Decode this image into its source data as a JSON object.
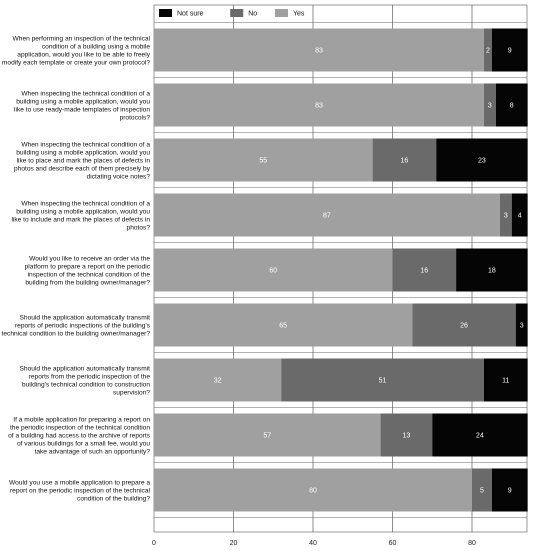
{
  "chart_data": {
    "type": "bar",
    "orientation": "horizontal",
    "stacked": true,
    "grid": true,
    "legend_position": "top-left",
    "xlim": [
      0,
      93
    ],
    "xticks": [
      0,
      20,
      40,
      60,
      80
    ],
    "categories": [
      [
        "When performing an inspection of the technical",
        "condition of a building using a mobile",
        "application, would you like to be able to freely",
        "modify each template or create your own protocol?"
      ],
      [
        "When inspecting the technical condition of a",
        "building using a mobile application, would you",
        "like to use ready-made templates of inspection",
        "protocols?"
      ],
      [
        "When inspecting the technical condition of a",
        "building using a mobile application, would you",
        "like to place and mark the places of defects in",
        "photos and describe each of them precisely by",
        "dictating voice notes?"
      ],
      [
        "When inspecting the technical condition of a",
        "building using a mobile application, would you",
        "like to include and mark the places of defects in",
        "photos?"
      ],
      [
        "Would you like to receive an order via the",
        "platform to prepare a report on the periodic",
        "inspection of the technical condition of the",
        "building from the building owner/manager?"
      ],
      [
        "Should the application automatically transmit",
        "reports of periodic inspections of the building's",
        "technical condition to the building owner/manager?"
      ],
      [
        "Should the application automatically transmit",
        "reports from the periodic inspection of the",
        "building's technical condition to construction",
        "supervision?"
      ],
      [
        "If a mobile application for preparing a report on",
        "the periodic inspection of the technical condition",
        "of a building had access to the archive of reports",
        "of various buildings for a small fee, would you",
        "take advantage of such an opportunity?"
      ],
      [
        "Would you use a mobile application to prepare a",
        "report on the periodic inspection of the technical",
        "condition of the building?"
      ]
    ],
    "series": [
      {
        "name": "Yes",
        "color": "#a0a0a0",
        "label_color": "#ffffff",
        "values": [
          83,
          83,
          55,
          87,
          60,
          65,
          32,
          57,
          80
        ]
      },
      {
        "name": "No",
        "color": "#6a6a6a",
        "label_color": "#ffffff",
        "values": [
          2,
          3,
          16,
          3,
          16,
          26,
          51,
          13,
          5
        ]
      },
      {
        "name": "Not sure",
        "color": "#050505",
        "label_color": "#ffffff",
        "values": [
          9,
          8,
          23,
          4,
          18,
          3,
          11,
          24,
          9
        ]
      }
    ],
    "legend_order": [
      "Not sure",
      "No",
      "Yes"
    ]
  }
}
